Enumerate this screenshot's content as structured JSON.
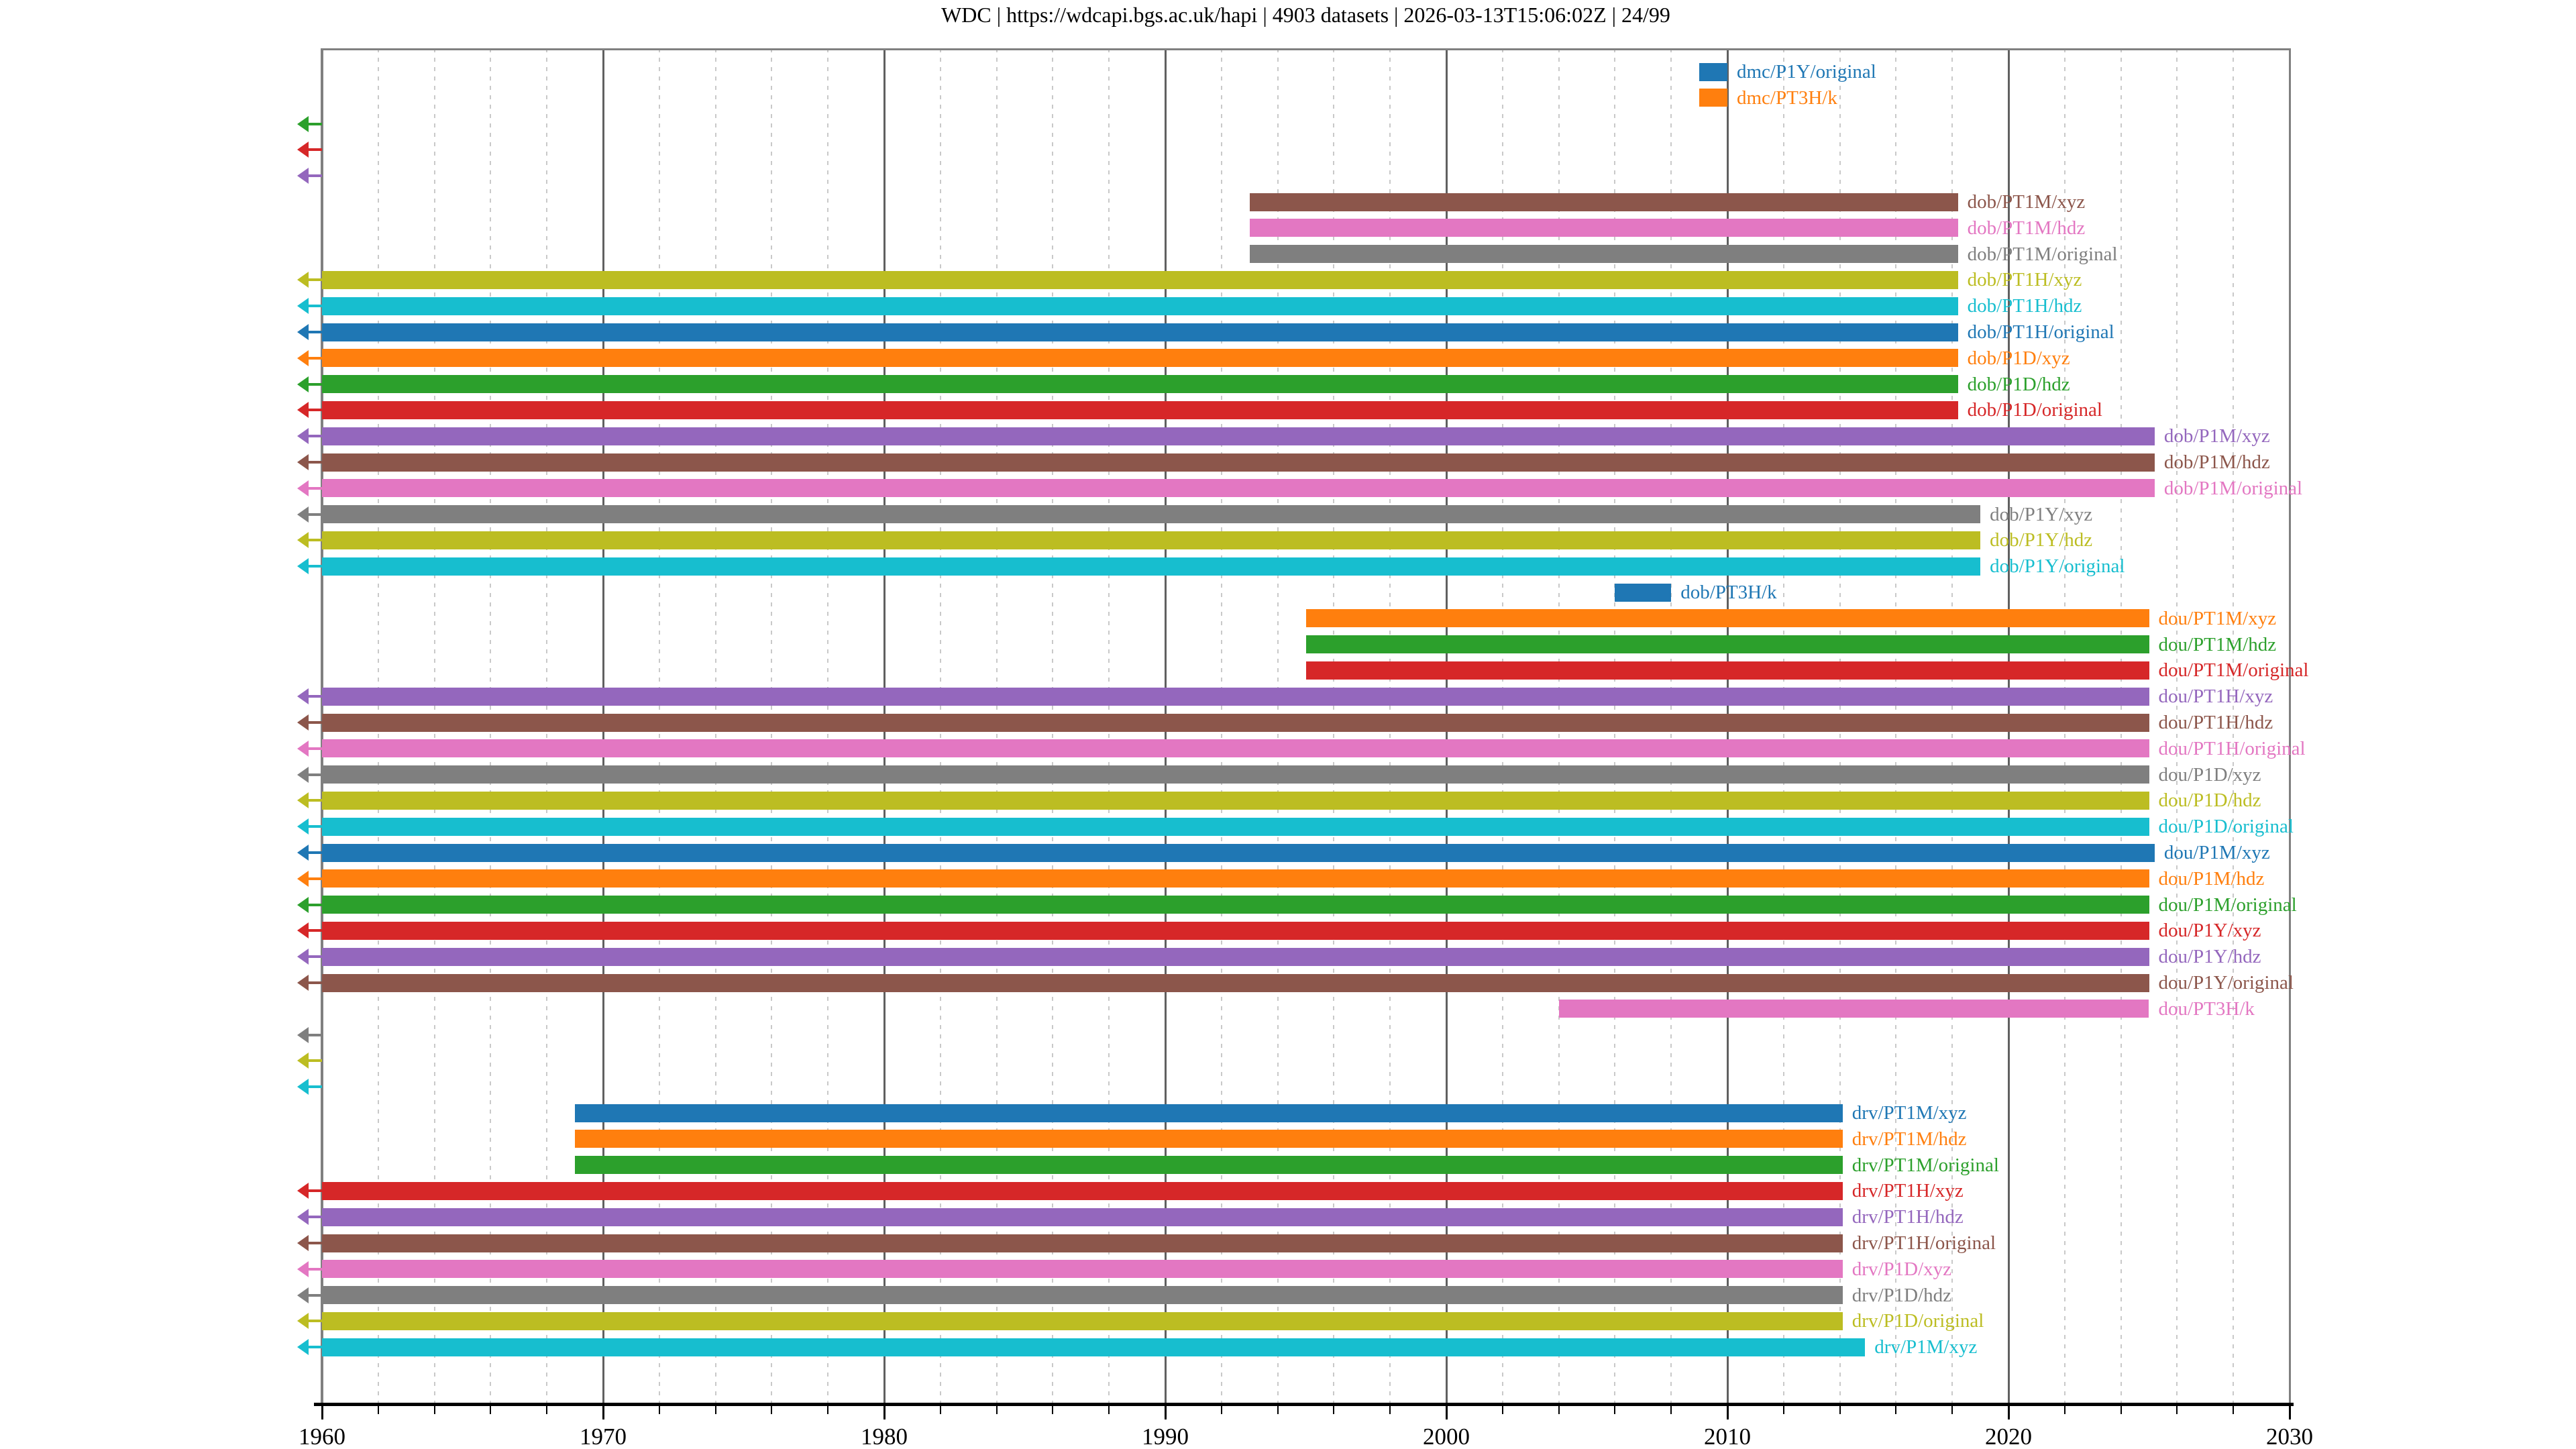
{
  "title": {
    "full": "WDC | https://wdcapi.bgs.ac.uk/hapi | 4903 datasets | 2026-03-13T15:06:02Z | 24/99",
    "source": "WDC",
    "url": "https://wdcapi.bgs.ac.uk/hapi",
    "dataset_count": "4903 datasets",
    "timestamp": "2026-03-13T15:06:02Z",
    "page": "24/99"
  },
  "palette": {
    "blue": "#1f77b4",
    "orange": "#ff7f0e",
    "green": "#2ca02c",
    "red": "#d62728",
    "purple": "#9467bd",
    "brown": "#8c564b",
    "pink": "#e377c2",
    "gray": "#7f7f7f",
    "olive": "#bcbd22",
    "cyan": "#17becf"
  },
  "chart_data": {
    "type": "bar",
    "subtype": "horizontal-interval-timeline",
    "title": "WDC | https://wdcapi.bgs.ac.uk/hapi | 4903 datasets | 2026-03-13T15:06:02Z | 24/99",
    "xlabel": "",
    "ylabel": "",
    "xlim": [
      1960,
      2030
    ],
    "x_major_ticks": [
      1960,
      1970,
      1980,
      1990,
      2000,
      2010,
      2020,
      2030
    ],
    "x_minor_step": 2,
    "grid": "major-solid, minor-dotted",
    "legend_position": "none (labels at right end of each bar, colored as bar)",
    "arrow_meaning": "left arrow = data extends before 1960 (clipped at axis)",
    "rows": [
      {
        "label": "dmc/P1Y/original",
        "color": "blue",
        "start": 2009.0,
        "end": 2010.0,
        "clipped_left": false,
        "arrow_only": false
      },
      {
        "label": "dmc/PT3H/k",
        "color": "orange",
        "start": 2009.0,
        "end": 2010.0,
        "clipped_left": false,
        "arrow_only": false
      },
      {
        "label": "",
        "color": "green",
        "start": null,
        "end": null,
        "clipped_left": true,
        "arrow_only": true
      },
      {
        "label": "",
        "color": "red",
        "start": null,
        "end": null,
        "clipped_left": true,
        "arrow_only": true
      },
      {
        "label": "",
        "color": "purple",
        "start": null,
        "end": null,
        "clipped_left": true,
        "arrow_only": true
      },
      {
        "label": "dob/PT1M/xyz",
        "color": "brown",
        "start": 1993.0,
        "end": 2018.2,
        "clipped_left": false,
        "arrow_only": false
      },
      {
        "label": "dob/PT1M/hdz",
        "color": "pink",
        "start": 1993.0,
        "end": 2018.2,
        "clipped_left": false,
        "arrow_only": false
      },
      {
        "label": "dob/PT1M/original",
        "color": "gray",
        "start": 1993.0,
        "end": 2018.2,
        "clipped_left": false,
        "arrow_only": false
      },
      {
        "label": "dob/PT1H/xyz",
        "color": "olive",
        "start": null,
        "end": 2018.2,
        "clipped_left": true,
        "arrow_only": false
      },
      {
        "label": "dob/PT1H/hdz",
        "color": "cyan",
        "start": null,
        "end": 2018.2,
        "clipped_left": true,
        "arrow_only": false
      },
      {
        "label": "dob/PT1H/original",
        "color": "blue",
        "start": null,
        "end": 2018.2,
        "clipped_left": true,
        "arrow_only": false
      },
      {
        "label": "dob/P1D/xyz",
        "color": "orange",
        "start": null,
        "end": 2018.2,
        "clipped_left": true,
        "arrow_only": false
      },
      {
        "label": "dob/P1D/hdz",
        "color": "green",
        "start": null,
        "end": 2018.2,
        "clipped_left": true,
        "arrow_only": false
      },
      {
        "label": "dob/P1D/original",
        "color": "red",
        "start": null,
        "end": 2018.2,
        "clipped_left": true,
        "arrow_only": false
      },
      {
        "label": "dob/P1M/xyz",
        "color": "purple",
        "start": null,
        "end": 2025.2,
        "clipped_left": true,
        "arrow_only": false
      },
      {
        "label": "dob/P1M/hdz",
        "color": "brown",
        "start": null,
        "end": 2025.2,
        "clipped_left": true,
        "arrow_only": false
      },
      {
        "label": "dob/P1M/original",
        "color": "pink",
        "start": null,
        "end": 2025.2,
        "clipped_left": true,
        "arrow_only": false
      },
      {
        "label": "dob/P1Y/xyz",
        "color": "gray",
        "start": null,
        "end": 2019.0,
        "clipped_left": true,
        "arrow_only": false
      },
      {
        "label": "dob/P1Y/hdz",
        "color": "olive",
        "start": null,
        "end": 2019.0,
        "clipped_left": true,
        "arrow_only": false
      },
      {
        "label": "dob/P1Y/original",
        "color": "cyan",
        "start": null,
        "end": 2019.0,
        "clipped_left": true,
        "arrow_only": false
      },
      {
        "label": "dob/PT3H/k",
        "color": "blue",
        "start": 2006.0,
        "end": 2008.0,
        "clipped_left": false,
        "arrow_only": false
      },
      {
        "label": "dou/PT1M/xyz",
        "color": "orange",
        "start": 1995.0,
        "end": 2025.0,
        "clipped_left": false,
        "arrow_only": false
      },
      {
        "label": "dou/PT1M/hdz",
        "color": "green",
        "start": 1995.0,
        "end": 2025.0,
        "clipped_left": false,
        "arrow_only": false
      },
      {
        "label": "dou/PT1M/original",
        "color": "red",
        "start": 1995.0,
        "end": 2025.0,
        "clipped_left": false,
        "arrow_only": false
      },
      {
        "label": "dou/PT1H/xyz",
        "color": "purple",
        "start": null,
        "end": 2025.0,
        "clipped_left": true,
        "arrow_only": false
      },
      {
        "label": "dou/PT1H/hdz",
        "color": "brown",
        "start": null,
        "end": 2025.0,
        "clipped_left": true,
        "arrow_only": false
      },
      {
        "label": "dou/PT1H/original",
        "color": "pink",
        "start": null,
        "end": 2025.0,
        "clipped_left": true,
        "arrow_only": false
      },
      {
        "label": "dou/P1D/xyz",
        "color": "gray",
        "start": null,
        "end": 2025.0,
        "clipped_left": true,
        "arrow_only": false
      },
      {
        "label": "dou/P1D/hdz",
        "color": "olive",
        "start": null,
        "end": 2025.0,
        "clipped_left": true,
        "arrow_only": false
      },
      {
        "label": "dou/P1D/original",
        "color": "cyan",
        "start": null,
        "end": 2025.0,
        "clipped_left": true,
        "arrow_only": false
      },
      {
        "label": "dou/P1M/xyz",
        "color": "blue",
        "start": null,
        "end": 2025.2,
        "clipped_left": true,
        "arrow_only": false
      },
      {
        "label": "dou/P1M/hdz",
        "color": "orange",
        "start": null,
        "end": 2025.0,
        "clipped_left": true,
        "arrow_only": false
      },
      {
        "label": "dou/P1M/original",
        "color": "green",
        "start": null,
        "end": 2025.0,
        "clipped_left": true,
        "arrow_only": false
      },
      {
        "label": "dou/P1Y/xyz",
        "color": "red",
        "start": null,
        "end": 2025.0,
        "clipped_left": true,
        "arrow_only": false
      },
      {
        "label": "dou/P1Y/hdz",
        "color": "purple",
        "start": null,
        "end": 2025.0,
        "clipped_left": true,
        "arrow_only": false
      },
      {
        "label": "dou/P1Y/original",
        "color": "brown",
        "start": null,
        "end": 2025.0,
        "clipped_left": true,
        "arrow_only": false
      },
      {
        "label": "dou/PT3H/k",
        "color": "pink",
        "start": 2004.0,
        "end": 2025.0,
        "clipped_left": false,
        "arrow_only": false
      },
      {
        "label": "",
        "color": "gray",
        "start": null,
        "end": null,
        "clipped_left": true,
        "arrow_only": true
      },
      {
        "label": "",
        "color": "olive",
        "start": null,
        "end": null,
        "clipped_left": true,
        "arrow_only": true
      },
      {
        "label": "",
        "color": "cyan",
        "start": null,
        "end": null,
        "clipped_left": true,
        "arrow_only": true
      },
      {
        "label": "drv/PT1M/xyz",
        "color": "blue",
        "start": 1969.0,
        "end": 2014.1,
        "clipped_left": false,
        "arrow_only": false
      },
      {
        "label": "drv/PT1M/hdz",
        "color": "orange",
        "start": 1969.0,
        "end": 2014.1,
        "clipped_left": false,
        "arrow_only": false
      },
      {
        "label": "drv/PT1M/original",
        "color": "green",
        "start": 1969.0,
        "end": 2014.1,
        "clipped_left": false,
        "arrow_only": false
      },
      {
        "label": "drv/PT1H/xyz",
        "color": "red",
        "start": null,
        "end": 2014.1,
        "clipped_left": true,
        "arrow_only": false
      },
      {
        "label": "drv/PT1H/hdz",
        "color": "purple",
        "start": null,
        "end": 2014.1,
        "clipped_left": true,
        "arrow_only": false
      },
      {
        "label": "drv/PT1H/original",
        "color": "brown",
        "start": null,
        "end": 2014.1,
        "clipped_left": true,
        "arrow_only": false
      },
      {
        "label": "drv/P1D/xyz",
        "color": "pink",
        "start": null,
        "end": 2014.1,
        "clipped_left": true,
        "arrow_only": false
      },
      {
        "label": "drv/P1D/hdz",
        "color": "gray",
        "start": null,
        "end": 2014.1,
        "clipped_left": true,
        "arrow_only": false
      },
      {
        "label": "drv/P1D/original",
        "color": "olive",
        "start": null,
        "end": 2014.1,
        "clipped_left": true,
        "arrow_only": false
      },
      {
        "label": "drv/P1M/xyz",
        "color": "cyan",
        "start": null,
        "end": 2014.9,
        "clipped_left": true,
        "arrow_only": false
      }
    ]
  }
}
